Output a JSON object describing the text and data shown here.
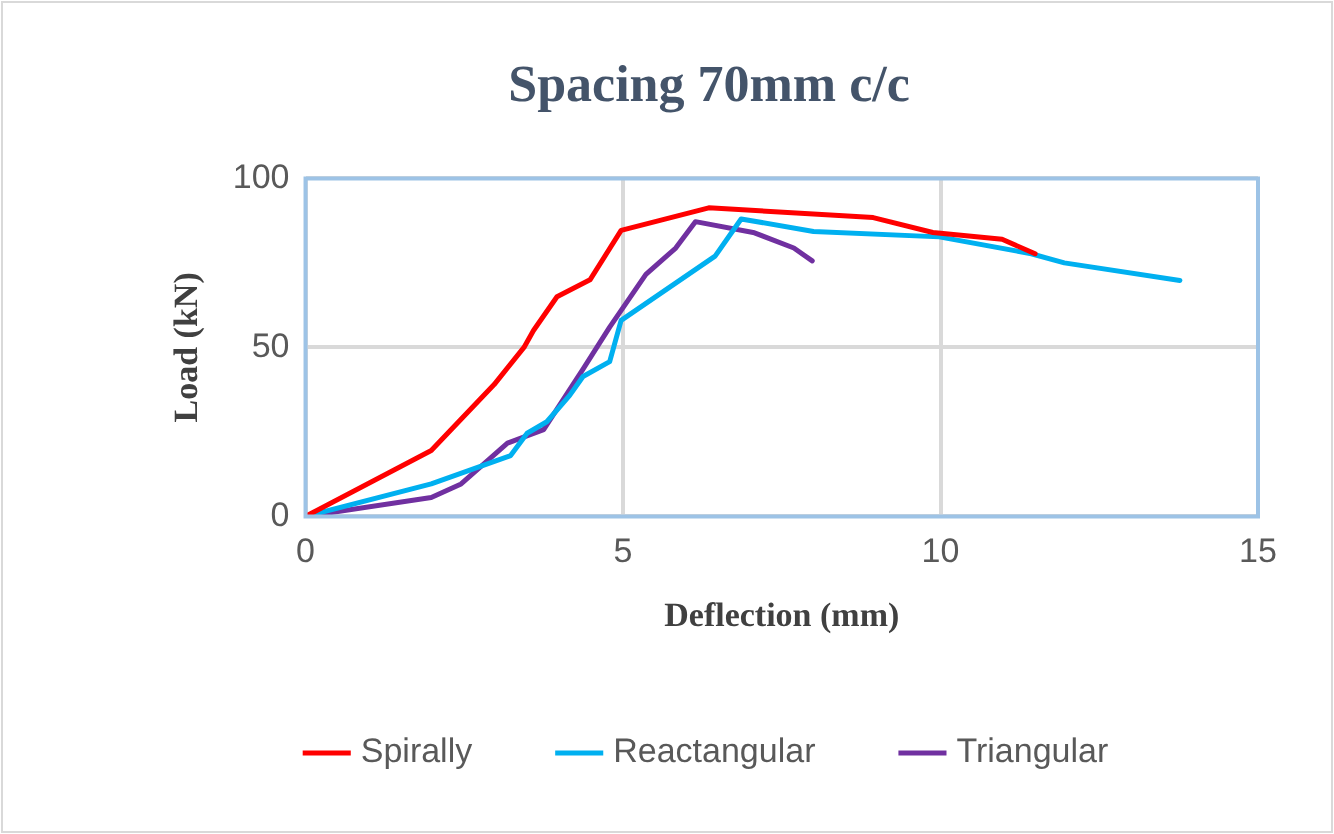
{
  "chart_data": {
    "type": "line",
    "title": "Spacing 70mm c/c",
    "xlabel": "Deflection (mm)",
    "ylabel": "Load (kN)",
    "xlim": [
      0,
      15
    ],
    "xticks": [
      0,
      5,
      10,
      15
    ],
    "ylim": [
      0,
      100
    ],
    "yticks": [
      0,
      50,
      100
    ],
    "grid": true,
    "legend": "bottom",
    "marker": "none",
    "series": [
      {
        "name": "Spirally",
        "color": "#ff0000",
        "x": [
          0,
          1.98,
          2.97,
          3.44,
          3.59,
          3.96,
          4.48,
          4.97,
          6.35,
          8.94,
          9.88,
          10.97,
          11.49
        ],
        "values": [
          0,
          19.5,
          39,
          50,
          55,
          65,
          70,
          84.6,
          91.3,
          88.4,
          84,
          82,
          77.7
        ]
      },
      {
        "name": "Reactangular",
        "color": "#00b0f0",
        "x": [
          0,
          1.98,
          3.23,
          3.49,
          3.8,
          4.16,
          4.37,
          4.79,
          4.97,
          6.45,
          6.86,
          8.0,
          9.98,
          11.43,
          11.95,
          13.77
        ],
        "values": [
          0,
          9.6,
          18,
          24.6,
          28,
          35.8,
          41.4,
          45.8,
          58,
          77,
          88,
          84.3,
          82.7,
          77.7,
          75,
          69.8
        ]
      },
      {
        "name": "Triangular",
        "color": "#7030a0",
        "x": [
          0,
          1.98,
          2.45,
          3.18,
          3.75,
          4.37,
          4.79,
          5.36,
          5.83,
          6.14,
          7.07,
          7.69,
          7.98
        ],
        "values": [
          0,
          5.6,
          9.6,
          21.7,
          25.7,
          43.6,
          56,
          71.6,
          79.4,
          87.2,
          83.9,
          79.4,
          75.6
        ]
      }
    ]
  }
}
